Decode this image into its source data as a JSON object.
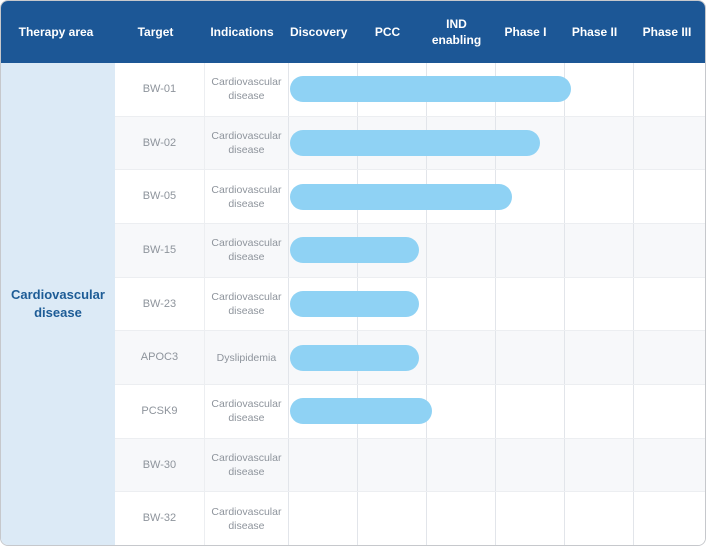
{
  "header": {
    "columns": [
      "Therapy area",
      "Target",
      "Indications",
      "Discovery",
      "PCC",
      "IND enabling",
      "Phase I",
      "Phase II",
      "Phase III"
    ]
  },
  "therapy_area": {
    "label": "Cardiovascular disease"
  },
  "pipeline": {
    "rows": [
      {
        "target": "BW-01",
        "indication": "Cardiovascular disease",
        "progress_stages": 4.05
      },
      {
        "target": "BW-02",
        "indication": "Cardiovascular disease",
        "progress_stages": 3.6
      },
      {
        "target": "BW-05",
        "indication": "Cardiovascular disease",
        "progress_stages": 3.2
      },
      {
        "target": "BW-15",
        "indication": "Cardiovascular disease",
        "progress_stages": 1.85
      },
      {
        "target": "BW-23",
        "indication": "Cardiovascular disease",
        "progress_stages": 1.85
      },
      {
        "target": "APOC3",
        "indication": "Dyslipidemia",
        "progress_stages": 1.85
      },
      {
        "target": "PCSK9",
        "indication": "Cardiovascular disease",
        "progress_stages": 2.05
      },
      {
        "target": "BW-30",
        "indication": "Cardiovascular disease",
        "progress_stages": 0
      },
      {
        "target": "BW-32",
        "indication": "Cardiovascular disease",
        "progress_stages": 0
      }
    ]
  },
  "colors": {
    "header_bg": "#1c5796",
    "bar": "#8fd2f4",
    "therapy_bg": "#dceaf6",
    "row_alt_bg": "#f7f8fa",
    "text_muted": "#8e949c"
  },
  "chart_data": {
    "type": "bar",
    "orientation": "horizontal",
    "stage_axis": [
      "Discovery",
      "PCC",
      "IND enabling",
      "Phase I",
      "Phase II",
      "Phase III"
    ],
    "categories": [
      "BW-01",
      "BW-02",
      "BW-05",
      "BW-15",
      "BW-23",
      "APOC3",
      "PCSK9",
      "BW-30",
      "BW-32"
    ],
    "values": [
      4.05,
      3.6,
      3.2,
      1.85,
      1.85,
      1.85,
      2.05,
      0,
      0
    ],
    "value_unit": "pipeline stages completed (1 unit = one stage column)",
    "therapy_area": "Cardiovascular disease",
    "indications": [
      "Cardiovascular disease",
      "Cardiovascular disease",
      "Cardiovascular disease",
      "Cardiovascular disease",
      "Cardiovascular disease",
      "Dyslipidemia",
      "Cardiovascular disease",
      "Cardiovascular disease",
      "Cardiovascular disease"
    ],
    "legend": "none",
    "grid": "vertical stage separators on"
  }
}
